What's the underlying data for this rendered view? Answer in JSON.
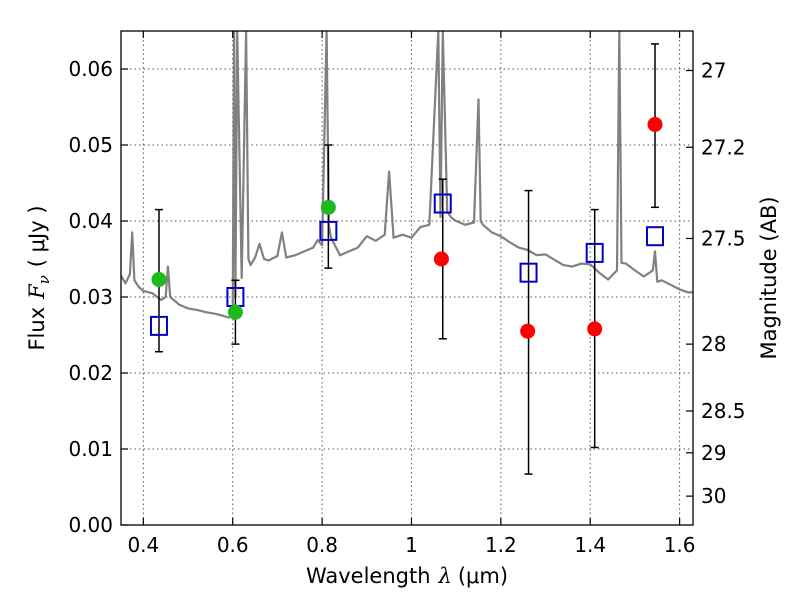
{
  "chart_data": {
    "type": "scatter",
    "xlabel": "Wavelength",
    "xlabel_symbol": "λ",
    "xlabel_unit": "(μm)",
    "ylabel": "Flux",
    "ylabel_symbol": "F",
    "ylabel_subscript": "ν",
    "ylabel_unit": "( μJy )",
    "y2label": "Magnitude (AB)",
    "xlim": [
      0.35,
      1.63
    ],
    "ylim": [
      0.0,
      0.065
    ],
    "grid": true,
    "xticks": [
      0.4,
      0.6,
      0.8,
      1.0,
      1.2,
      1.4,
      1.6
    ],
    "xtick_labels": [
      "0.4",
      "0.6",
      "0.8",
      "1",
      "1.2",
      "1.4",
      "1.6"
    ],
    "yticks": [
      0.0,
      0.01,
      0.02,
      0.03,
      0.04,
      0.05,
      0.06
    ],
    "ytick_labels": [
      "0.00",
      "0.01",
      "0.02",
      "0.03",
      "0.04",
      "0.05",
      "0.06"
    ],
    "y2ticks": [
      {
        "label": "27",
        "flux": 0.0598
      },
      {
        "label": "27.2",
        "flux": 0.0497
      },
      {
        "label": "27.5",
        "flux": 0.0377
      },
      {
        "label": "28",
        "flux": 0.0238
      },
      {
        "label": "28.5",
        "flux": 0.015
      },
      {
        "label": "29",
        "flux": 0.0095
      },
      {
        "label": "30",
        "flux": 0.0038
      }
    ],
    "observed_errorbars": [
      {
        "x": 0.435,
        "y_low": 0.0228,
        "y_high": 0.0415
      },
      {
        "x": 0.606,
        "y_low": 0.0238,
        "y_high": 0.0322
      },
      {
        "x": 0.814,
        "y_low": 0.0338,
        "y_high": 0.05
      },
      {
        "x": 1.07,
        "y_low": 0.0245,
        "y_high": 0.0455
      },
      {
        "x": 1.262,
        "y_low": 0.0067,
        "y_high": 0.044
      },
      {
        "x": 1.41,
        "y_low": 0.0102,
        "y_high": 0.0415
      },
      {
        "x": 1.545,
        "y_low": 0.0418,
        "y_high": 0.0633
      }
    ],
    "detections_green": [
      {
        "x": 0.435,
        "y": 0.0323
      },
      {
        "x": 0.606,
        "y": 0.028
      },
      {
        "x": 0.814,
        "y": 0.0418
      }
    ],
    "upper_limits_red": [
      {
        "x": 1.067,
        "y": 0.035
      },
      {
        "x": 1.26,
        "y": 0.0255
      },
      {
        "x": 1.41,
        "y": 0.0258
      },
      {
        "x": 1.545,
        "y": 0.0527
      }
    ],
    "model_boxes_blue": [
      {
        "x": 0.435,
        "y": 0.0262
      },
      {
        "x": 0.606,
        "y": 0.03
      },
      {
        "x": 0.814,
        "y": 0.0387
      },
      {
        "x": 1.07,
        "y": 0.0423
      },
      {
        "x": 1.262,
        "y": 0.0332
      },
      {
        "x": 1.41,
        "y": 0.0358
      },
      {
        "x": 1.545,
        "y": 0.038
      }
    ],
    "model_spectrum": {
      "x": [
        0.35,
        0.36,
        0.37,
        0.375,
        0.38,
        0.39,
        0.4,
        0.42,
        0.44,
        0.45,
        0.455,
        0.46,
        0.48,
        0.5,
        0.52,
        0.54,
        0.56,
        0.58,
        0.59,
        0.6,
        0.603,
        0.606,
        0.61,
        0.62,
        0.63,
        0.635,
        0.64,
        0.65,
        0.66,
        0.67,
        0.68,
        0.7,
        0.71,
        0.72,
        0.74,
        0.76,
        0.78,
        0.79,
        0.8,
        0.81,
        0.815,
        0.82,
        0.84,
        0.86,
        0.88,
        0.9,
        0.92,
        0.94,
        0.95,
        0.96,
        0.98,
        1.0,
        1.02,
        1.04,
        1.06,
        1.065,
        1.07,
        1.08,
        1.09,
        1.1,
        1.12,
        1.14,
        1.15,
        1.155,
        1.16,
        1.18,
        1.2,
        1.22,
        1.24,
        1.26,
        1.28,
        1.3,
        1.32,
        1.34,
        1.36,
        1.38,
        1.4,
        1.42,
        1.44,
        1.46,
        1.465,
        1.47,
        1.48,
        1.5,
        1.52,
        1.54,
        1.545,
        1.55,
        1.56,
        1.58,
        1.6,
        1.62,
        1.63
      ],
      "y": [
        0.0328,
        0.0318,
        0.033,
        0.0385,
        0.0322,
        0.0313,
        0.0308,
        0.0305,
        0.0296,
        0.03,
        0.034,
        0.03,
        0.029,
        0.0285,
        0.0283,
        0.028,
        0.0278,
        0.0275,
        0.0273,
        0.0275,
        0.065,
        0.03,
        0.065,
        0.0325,
        0.065,
        0.035,
        0.0342,
        0.0352,
        0.037,
        0.035,
        0.0348,
        0.0354,
        0.0385,
        0.0352,
        0.0355,
        0.036,
        0.0365,
        0.0375,
        0.0368,
        0.065,
        0.0395,
        0.0378,
        0.0355,
        0.036,
        0.0365,
        0.038,
        0.0374,
        0.0382,
        0.0465,
        0.0378,
        0.0382,
        0.0378,
        0.0392,
        0.0395,
        0.065,
        0.0405,
        0.065,
        0.0412,
        0.0404,
        0.04,
        0.0395,
        0.0398,
        0.056,
        0.04,
        0.0395,
        0.0385,
        0.038,
        0.0372,
        0.0365,
        0.0362,
        0.0355,
        0.0356,
        0.0349,
        0.0342,
        0.034,
        0.0344,
        0.0343,
        0.0332,
        0.0323,
        0.0335,
        0.065,
        0.0345,
        0.0344,
        0.0335,
        0.0327,
        0.0335,
        0.036,
        0.032,
        0.0322,
        0.0316,
        0.031,
        0.0306,
        0.0306
      ]
    }
  },
  "colors": {
    "spectrum": "#808080",
    "detections": "#1fb81f",
    "upper_limits": "#ff0000",
    "model_boxes": "#0000cc",
    "errorbars": "#000000",
    "grid": "#555555"
  }
}
